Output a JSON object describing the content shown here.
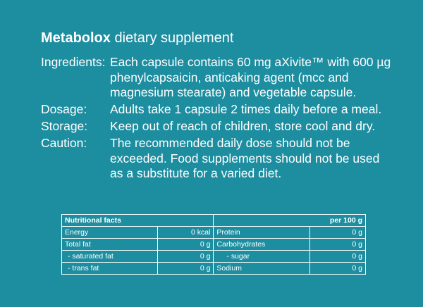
{
  "product": {
    "name": "Metabolox",
    "descriptor": "dietary supplement"
  },
  "info": [
    {
      "label": "Ingredients:",
      "value": "Each capsule contains 60 mg aXivite™ with 600 µg phenylcapsaicin, anticaking agent (mcc and magnesium stearate) and vegetable capsule."
    },
    {
      "label": "Dosage:",
      "value": "Adults take 1 capsule 2 times daily before a meal."
    },
    {
      "label": "Storage:",
      "value": "Keep out of reach of children, store cool and dry."
    },
    {
      "label": "Caution:",
      "value": "The recommended daily dose should not be exceeded. Food supplements should not be used as a substitute for a varied diet."
    }
  ],
  "nutrition": {
    "header": "Nutritional facts",
    "per": "per 100 g",
    "rows": [
      {
        "left_label": "Energy",
        "left_value": "0 kcal",
        "right_label": "Protein",
        "right_value": "0 g"
      },
      {
        "left_label": "Total fat",
        "left_value": "0 g",
        "right_label": "Carbohydrates",
        "right_value": "0 g"
      },
      {
        "left_label": "- saturated fat",
        "left_value": "0 g",
        "right_label": "- sugar",
        "right_value": "0 g"
      },
      {
        "left_label": "- trans fat",
        "left_value": "0 g",
        "right_label": "Sodium",
        "right_value": "0 g"
      }
    ]
  }
}
